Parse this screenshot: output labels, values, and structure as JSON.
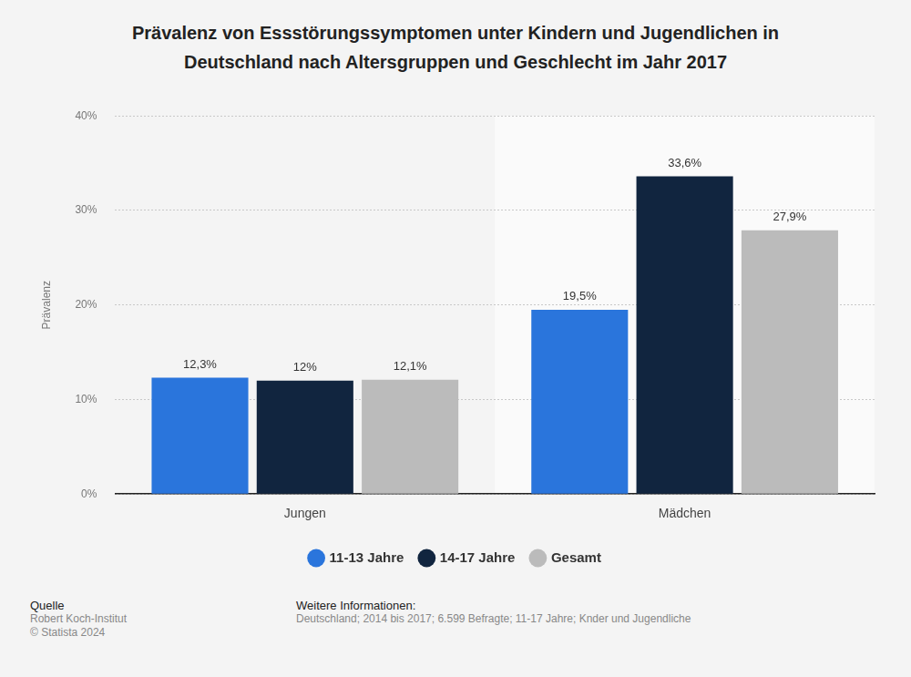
{
  "chart_data": {
    "type": "bar",
    "title": "Prävalenz von Essstörungssymptomen unter Kindern und Jugendlichen in Deutschland nach Altersgruppen und Geschlecht im Jahr 2017",
    "y_label": "Prävalenz",
    "categories": [
      "Jungen",
      "Mädchen"
    ],
    "series": [
      {
        "name": "11-13 Jahre",
        "color": "#2a75dc",
        "values": [
          12.3,
          19.5
        ],
        "value_labels": [
          "12,3%",
          "19,5%"
        ]
      },
      {
        "name": "14-17 Jahre",
        "color": "#11253f",
        "values": [
          12,
          33.6
        ],
        "value_labels": [
          "12%",
          "33,6%"
        ]
      },
      {
        "name": "Gesamt",
        "color": "#bbbbbb",
        "values": [
          12.1,
          27.9
        ],
        "value_labels": [
          "12,1%",
          "27,9%"
        ]
      }
    ],
    "ylim": [
      0,
      40
    ],
    "yticks": [
      {
        "value": 0,
        "label": "0%"
      },
      {
        "value": 10,
        "label": "10%"
      },
      {
        "value": 20,
        "label": "20%"
      },
      {
        "value": 30,
        "label": "30%"
      },
      {
        "value": 40,
        "label": "40%"
      }
    ],
    "grid": true,
    "legend": "bottom",
    "data_labels": true,
    "source": {
      "heading": "Quelle",
      "lines": [
        "Robert Koch-Institut",
        "© Statista 2024"
      ]
    },
    "info": {
      "heading": "Weitere Informationen:",
      "lines": [
        "Deutschland; 2014 bis 2017; 6.599 Befragte; 11-17 Jahre; Knder und Jugendliche"
      ]
    }
  }
}
